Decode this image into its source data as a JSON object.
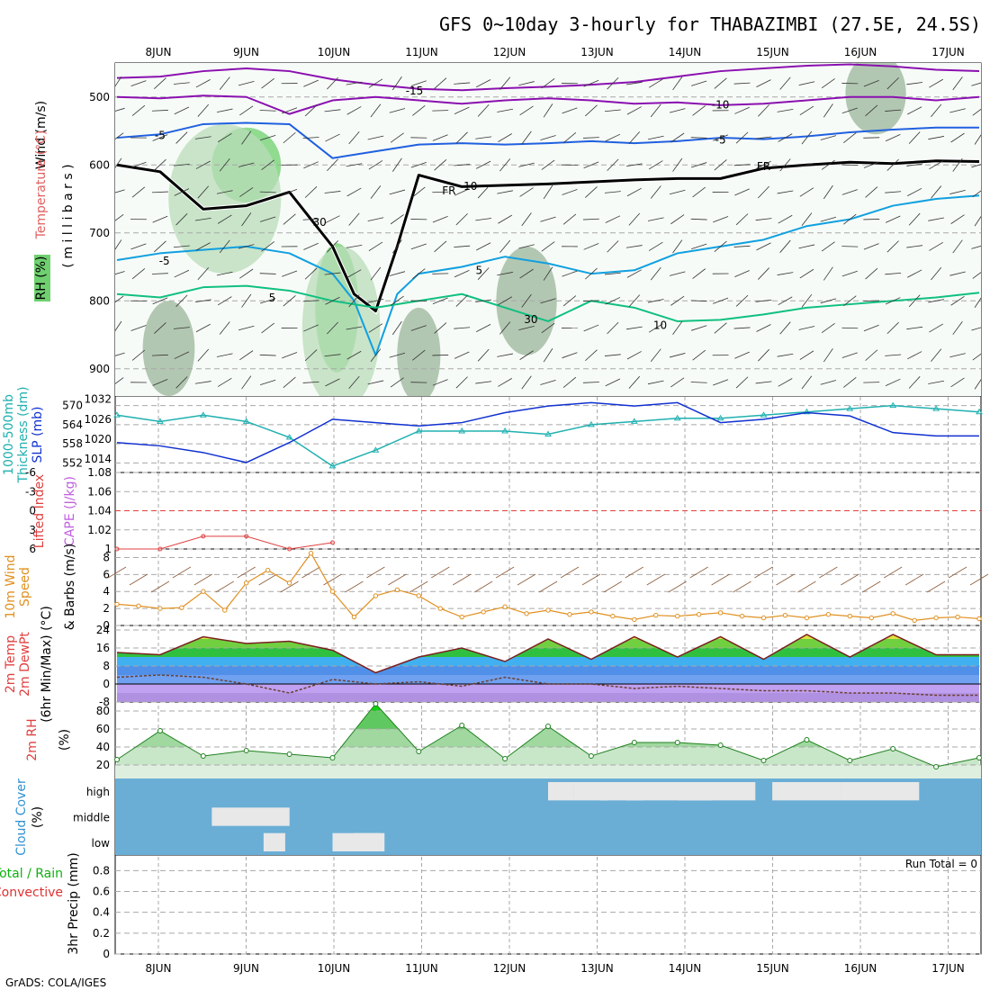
{
  "title": "GFS 0~10day 3-hourly for THABAZIMBI (27.5E, 24.5S)",
  "footer": "GrADS: COLA/IGES",
  "colors": {
    "grid": "#a8a8a8",
    "rh_light": "#e6f3e6",
    "rh_mid": "#b9dcb9",
    "rh_dark": "#6fd06f",
    "rh_shade": "#9bb59b",
    "purple": "#8a10b0",
    "blue": "#2060e0",
    "cyan": "#10a0e0",
    "green": "#10c080",
    "orange": "#e0a020",
    "darkorange": "#e07010",
    "thickness": "#20b0b0",
    "slp": "#1030d0",
    "wind": "#e09020",
    "cloud_blue": "#6aaed6",
    "cloud_gray": "#e8e8e8"
  },
  "chart_data": [
    {
      "type": "heatmap",
      "name": "upper-air",
      "dates": [
        "8JUN",
        "9JUN",
        "10JUN",
        "11JUN",
        "12JUN",
        "13JUN",
        "14JUN",
        "15JUN",
        "16JUN",
        "17JUN"
      ],
      "ylabels": [
        {
          "text": "Wind (m/s)",
          "color": "#000000"
        },
        {
          "text": "Temperature (°C)",
          "color": "#e06060"
        },
        {
          "text": "RH (%)",
          "color": "#000000"
        }
      ],
      "yaxis_title": "( m i l l i b a r s )",
      "ylim": [
        450,
        940
      ],
      "yticks": [
        500,
        600,
        700,
        800,
        900
      ],
      "contour_labels": [
        {
          "text": "-15",
          "x": 6.9,
          "y": 490,
          "color": "#8a10b0"
        },
        {
          "text": "-10",
          "x": 14.0,
          "y": 510,
          "color": "#8a10b0"
        },
        {
          "text": "-5",
          "x": 1.0,
          "y": 555,
          "color": "#2060e0"
        },
        {
          "text": "-5",
          "x": 14.0,
          "y": 562,
          "color": "#2060e0"
        },
        {
          "text": "FR",
          "x": 15.0,
          "y": 601,
          "color": "#000000"
        },
        {
          "text": "FR",
          "x": 7.7,
          "y": 637,
          "color": "#000000"
        },
        {
          "text": "-5",
          "x": 1.1,
          "y": 740,
          "color": "#10a0e0"
        },
        {
          "text": "5",
          "x": 3.6,
          "y": 794,
          "color": "#10a0e0"
        },
        {
          "text": "5",
          "x": 8.4,
          "y": 754,
          "color": "#10a0e0"
        },
        {
          "text": "10",
          "x": 12.6,
          "y": 835,
          "color": "#10c080"
        },
        {
          "text": "30",
          "x": 4.7,
          "y": 683,
          "color": "#a8a8a8"
        },
        {
          "text": "30",
          "x": 9.6,
          "y": 826,
          "color": "#a8a8a8"
        },
        {
          "text": "10",
          "x": 8.2,
          "y": 630,
          "color": "#a8a8a8"
        }
      ],
      "contours": [
        {
          "label": "-15",
          "color": "#8a10b0",
          "x": [
            0,
            1,
            2,
            3,
            4,
            5,
            6,
            7,
            8,
            9,
            10,
            11,
            12,
            13,
            14,
            15,
            16,
            17,
            18,
            19,
            20
          ],
          "y": [
            472,
            470,
            462,
            458,
            462,
            474,
            482,
            488,
            490,
            487,
            485,
            482,
            478,
            470,
            462,
            458,
            454,
            452,
            455,
            460,
            462
          ]
        },
        {
          "label": "-10",
          "color": "#8a10b0",
          "x": [
            0,
            1,
            2,
            3,
            4,
            5,
            6,
            7,
            8,
            9,
            10,
            11,
            12,
            13,
            14,
            15,
            16,
            17,
            18,
            19,
            20
          ],
          "y": [
            500,
            502,
            498,
            500,
            525,
            505,
            500,
            505,
            510,
            505,
            502,
            505,
            510,
            508,
            512,
            510,
            505,
            500,
            500,
            505,
            500
          ]
        },
        {
          "label": "-5",
          "color": "#2060e0",
          "x": [
            0,
            1,
            2,
            3,
            4,
            5,
            6,
            7,
            8,
            9,
            10,
            11,
            12,
            13,
            14,
            15,
            16,
            17,
            18,
            19,
            20
          ],
          "y": [
            560,
            555,
            540,
            538,
            540,
            590,
            580,
            570,
            568,
            570,
            568,
            565,
            568,
            565,
            560,
            562,
            558,
            552,
            548,
            545,
            545
          ]
        },
        {
          "label": "FR",
          "color": "#000000",
          "x": [
            0,
            1,
            2,
            3,
            4,
            5,
            5.5,
            6,
            6.5,
            7,
            8,
            9,
            10,
            11,
            12,
            13,
            14,
            15,
            16,
            17,
            18,
            19,
            20
          ],
          "y": [
            600,
            610,
            665,
            660,
            640,
            720,
            790,
            815,
            720,
            615,
            632,
            630,
            628,
            625,
            622,
            620,
            620,
            605,
            600,
            596,
            598,
            594,
            595
          ]
        },
        {
          "label": "-5b",
          "color": "#10a0e0",
          "x": [
            0,
            1,
            2,
            3,
            4,
            5,
            5.5,
            6,
            6.5,
            7,
            8,
            9,
            10,
            11,
            12,
            13,
            14,
            15,
            16,
            17,
            18,
            19,
            20
          ],
          "y": [
            740,
            730,
            725,
            720,
            730,
            760,
            800,
            880,
            790,
            760,
            750,
            735,
            745,
            760,
            755,
            730,
            720,
            710,
            690,
            680,
            660,
            650,
            645
          ]
        },
        {
          "label": "10",
          "color": "#10c080",
          "x": [
            0,
            1,
            2,
            3,
            4,
            5,
            6,
            7,
            8,
            9,
            10,
            11,
            12,
            13,
            14,
            15,
            16,
            17,
            18,
            19,
            20
          ],
          "y": [
            790,
            795,
            780,
            778,
            785,
            800,
            810,
            800,
            790,
            810,
            830,
            800,
            810,
            830,
            828,
            820,
            810,
            805,
            800,
            795,
            788
          ]
        }
      ],
      "rh_blobs": [
        {
          "x": 3.0,
          "y": 600,
          "rx": 0.8,
          "ry": 55,
          "level": "dark"
        },
        {
          "x": 5.1,
          "y": 810,
          "rx": 0.5,
          "ry": 95,
          "level": "dark"
        },
        {
          "x": 2.5,
          "y": 650,
          "rx": 1.3,
          "ry": 110,
          "level": "mid"
        },
        {
          "x": 5.2,
          "y": 840,
          "rx": 0.9,
          "ry": 120,
          "level": "mid"
        },
        {
          "x": 1.2,
          "y": 870,
          "rx": 0.6,
          "ry": 70,
          "level": "shade"
        },
        {
          "x": 7.0,
          "y": 880,
          "rx": 0.5,
          "ry": 70,
          "level": "shade"
        },
        {
          "x": 9.5,
          "y": 800,
          "rx": 0.7,
          "ry": 80,
          "level": "shade"
        },
        {
          "x": 17.6,
          "y": 495,
          "rx": 0.7,
          "ry": 60,
          "level": "shade"
        }
      ],
      "xlim": [
        0,
        20
      ]
    },
    {
      "type": "line",
      "name": "thickness-slp",
      "ylabels": [
        {
          "text": "1000-500mb",
          "color": "#20b0b0"
        },
        {
          "text": "Thickness (dm)",
          "color": "#20b0b0"
        },
        {
          "text": "SLP (mb)",
          "color": "#1030d0"
        }
      ],
      "left_ticks": [
        "552",
        "558",
        "564",
        "570"
      ],
      "right_ticks": [
        "1014",
        "1020",
        "1026",
        "1032"
      ],
      "left_ylim": [
        549,
        573
      ],
      "right_ylim": [
        1010,
        1033
      ],
      "x": [
        0,
        1,
        2,
        3,
        4,
        5,
        6,
        7,
        8,
        9,
        10,
        11,
        12,
        13,
        14,
        15,
        16,
        17,
        18,
        19,
        20
      ],
      "series": [
        {
          "name": "1000-500mb Thickness (dm)",
          "color": "#20b0b0",
          "values": [
            567,
            565,
            567,
            565,
            560,
            551,
            556,
            562,
            562,
            562,
            561,
            564,
            565,
            566,
            566,
            567,
            568,
            569,
            570,
            569,
            568
          ]
        },
        {
          "name": "SLP (mb)",
          "color": "#1030d0",
          "values": [
            1019,
            1018,
            1016,
            1013,
            1019,
            1026,
            1025,
            1024,
            1025,
            1028,
            1030,
            1031,
            1030,
            1031,
            1025,
            1026,
            1028,
            1027,
            1022,
            1021,
            1021
          ]
        }
      ]
    },
    {
      "type": "line",
      "name": "lifted-cape",
      "ylabels": [
        {
          "text": "Lifted Index",
          "color": "#e04040"
        },
        {
          "text": "CAPE (J/kg)",
          "color": "#c060e0"
        }
      ],
      "left_ticks": [
        "-6",
        "-3",
        "0",
        "3",
        "6"
      ],
      "right_ticks": [
        "1",
        "1.02",
        "1.04",
        "1.06",
        "1.08"
      ],
      "ylim": [
        -6,
        6
      ],
      "x": [
        0,
        1,
        2,
        3,
        4,
        5
      ],
      "series": [
        {
          "name": "Lifted Index",
          "color": "#e04040",
          "values": [
            6,
            6,
            4,
            4,
            6,
            5
          ]
        }
      ]
    },
    {
      "type": "line",
      "name": "wind10m",
      "ylabels": [
        {
          "text": "10m Wind",
          "color": "#e09020"
        },
        {
          "text": "Speed",
          "color": "#e09020"
        },
        {
          "text": "& Barbs (m/s)",
          "color": "#000000"
        }
      ],
      "yticks": [
        "0",
        "2",
        "4",
        "6",
        "8"
      ],
      "ylim": [
        0,
        9
      ],
      "x": [
        0,
        0.5,
        1,
        1.5,
        2,
        2.5,
        3,
        3.5,
        4,
        4.5,
        5,
        5.5,
        6,
        6.5,
        7,
        7.5,
        8,
        8.5,
        9,
        9.5,
        10,
        10.5,
        11,
        11.5,
        12,
        12.5,
        13,
        13.5,
        14,
        14.5,
        15,
        15.5,
        16,
        16.5,
        17,
        17.5,
        18,
        18.5,
        19,
        19.5,
        20
      ],
      "series": [
        {
          "name": "10m Wind Speed",
          "color": "#e09020",
          "values": [
            2.5,
            2.3,
            2,
            2.1,
            4,
            1.8,
            5,
            6.5,
            5,
            8.5,
            4,
            1,
            3.5,
            4.2,
            3.5,
            2,
            1,
            1.6,
            2.2,
            1.4,
            1.8,
            1.3,
            1.6,
            1.1,
            0.7,
            1.2,
            1.1,
            1.3,
            1.5,
            1.1,
            0.9,
            1.2,
            0.9,
            1.3,
            1.1,
            0.9,
            1.4,
            0.6,
            0.9,
            1.0,
            0.8
          ]
        }
      ]
    },
    {
      "type": "area",
      "name": "temp-dewpt",
      "ylabels": [
        {
          "text": "2m Temp",
          "color": "#e04040"
        },
        {
          "text": "2m DewPt",
          "color": "#e04040"
        },
        {
          "text": "(6hr Min/Max) (°C)",
          "color": "#000000"
        }
      ],
      "yticks": [
        "-8",
        "0",
        "8",
        "16",
        "24"
      ],
      "ylim": [
        -8,
        26
      ],
      "x": [
        0,
        1,
        2,
        3,
        4,
        5,
        6,
        7,
        8,
        9,
        10,
        11,
        12,
        13,
        14,
        15,
        16,
        17,
        18,
        19,
        20
      ],
      "series": [
        {
          "name": "2m Temp",
          "color": "#7a2020",
          "values": [
            14,
            13,
            21,
            18,
            19,
            15,
            5,
            12,
            16,
            10,
            20,
            11,
            21,
            12,
            21,
            11,
            22,
            12,
            22,
            13,
            13
          ]
        },
        {
          "name": "2m DewPt",
          "color": "#6a4030",
          "values": [
            3,
            4,
            3,
            0,
            -4,
            2,
            0,
            1,
            -1,
            3,
            0,
            0,
            -2,
            -1,
            -2,
            -3,
            -3,
            -4,
            -4,
            -5,
            -5
          ]
        }
      ]
    },
    {
      "type": "area",
      "name": "rh2m",
      "ylabels": [
        {
          "text": "2m RH",
          "color": "#e04040"
        },
        {
          "text": "(%)",
          "color": "#000000"
        }
      ],
      "yticks": [
        "20",
        "40",
        "60",
        "80"
      ],
      "ylim": [
        5,
        90
      ],
      "x": [
        0,
        1,
        2,
        3,
        4,
        5,
        6,
        7,
        8,
        9,
        10,
        11,
        12,
        13,
        14,
        15,
        16,
        17,
        18,
        19,
        20
      ],
      "series": [
        {
          "name": "2m RH",
          "color": "#10a010",
          "values": [
            26,
            58,
            30,
            36,
            32,
            28,
            88,
            35,
            64,
            27,
            63,
            30,
            45,
            45,
            42,
            25,
            48,
            25,
            38,
            18,
            28
          ]
        }
      ]
    },
    {
      "type": "heatmap",
      "name": "cloud",
      "ylabels": [
        {
          "text": "Cloud Cover",
          "color": "#3090d0"
        },
        {
          "text": "(%)",
          "color": "#000000"
        }
      ],
      "levels": [
        "high",
        "middle",
        "low"
      ],
      "high_cells": [
        [
          10.0,
          0.6
        ],
        [
          10.6,
          0.8
        ],
        [
          11.2,
          1.0
        ],
        [
          11.8,
          2.0
        ],
        [
          13.0,
          1.8
        ],
        [
          15.2,
          0.8
        ],
        [
          16.0,
          0.8
        ],
        [
          16.8,
          1.8
        ]
      ],
      "middle_cells": [
        [
          2.2,
          1.2
        ],
        [
          3.4,
          0.6
        ]
      ],
      "low_cells": [
        [
          3.4,
          0.5
        ],
        [
          5.0,
          1.2
        ],
        [
          5.5,
          0.6
        ]
      ]
    },
    {
      "type": "bar",
      "name": "precip",
      "ylabels": [
        {
          "text": "Total / Rain",
          "color": "#10b010"
        },
        {
          "text": "Convective",
          "color": "#e03030"
        },
        {
          "text": "3hr Precip (mm)",
          "color": "#000000"
        }
      ],
      "yticks": [
        "0",
        "0.2",
        "0.4",
        "0.6",
        "0.8"
      ],
      "ylim": [
        0,
        0.95
      ],
      "run_total": "Run Total = 0",
      "values": []
    }
  ]
}
